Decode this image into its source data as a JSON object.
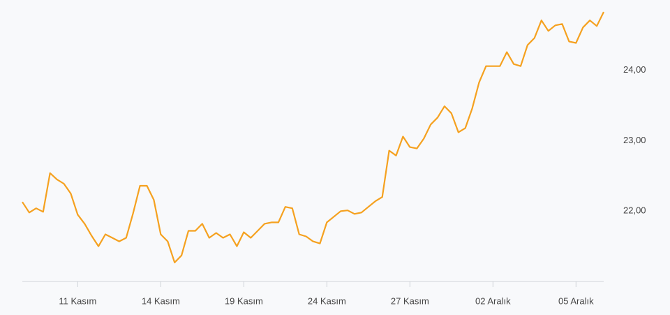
{
  "chart_data": {
    "type": "line",
    "categories": [
      null,
      null,
      null,
      null,
      null,
      null,
      null,
      null,
      "11 Kasım",
      null,
      null,
      null,
      null,
      null,
      null,
      null,
      null,
      null,
      null,
      null,
      "14 Kasım",
      null,
      null,
      null,
      null,
      null,
      null,
      null,
      null,
      null,
      null,
      null,
      "19 Kasım",
      null,
      null,
      null,
      null,
      null,
      null,
      null,
      null,
      null,
      null,
      null,
      "24 Kasım",
      null,
      null,
      null,
      null,
      null,
      null,
      null,
      null,
      null,
      null,
      null,
      "27 Kasım",
      null,
      null,
      null,
      null,
      null,
      null,
      null,
      null,
      null,
      null,
      null,
      "02 Aralık",
      null,
      null,
      null,
      null,
      null,
      null,
      null,
      null,
      null,
      null,
      null,
      "05 Aralık",
      null,
      null,
      null,
      null
    ],
    "values": [
      22.13,
      21.98,
      22.04,
      21.99,
      22.54,
      22.45,
      22.39,
      22.25,
      21.95,
      21.82,
      21.65,
      21.5,
      21.67,
      21.62,
      21.57,
      21.62,
      21.97,
      22.36,
      22.36,
      22.16,
      21.67,
      21.57,
      21.27,
      21.37,
      21.72,
      21.72,
      21.82,
      21.62,
      21.69,
      21.62,
      21.67,
      21.5,
      21.7,
      21.62,
      21.72,
      21.82,
      21.84,
      21.84,
      22.06,
      22.04,
      21.67,
      21.64,
      21.57,
      21.54,
      21.84,
      21.92,
      22.0,
      22.01,
      21.96,
      21.98,
      22.06,
      22.14,
      22.2,
      22.86,
      22.79,
      23.06,
      22.91,
      22.89,
      23.03,
      23.23,
      23.33,
      23.49,
      23.39,
      23.12,
      23.18,
      23.46,
      23.83,
      24.06,
      24.06,
      24.06,
      24.26,
      24.09,
      24.06,
      24.36,
      24.46,
      24.71,
      24.56,
      24.64,
      24.66,
      24.41,
      24.39,
      24.61,
      24.71,
      24.63,
      24.83
    ],
    "color": "#f5a11f",
    "ylim": [
      21,
      25
    ],
    "yticks": [
      {
        "value": 22,
        "label": "22,00"
      },
      {
        "value": 23,
        "label": "23,00"
      },
      {
        "value": 24,
        "label": "24,00"
      }
    ],
    "grid": false
  }
}
